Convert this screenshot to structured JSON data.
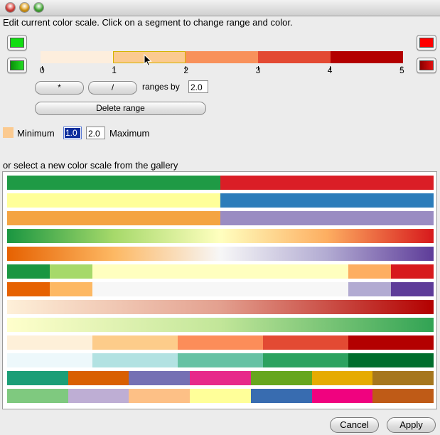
{
  "window": {
    "traffic_lights": {
      "close": "#e0443e",
      "minimize": "#e3a21a",
      "zoom": "#4bb13c"
    }
  },
  "editor": {
    "instruction": "Edit current color scale.  Click on a segment to change range and color.",
    "min_color_top": "#11dd11",
    "max_color_top": "#ff0000",
    "min_color_gradient": [
      "#0a8f0a",
      "#22dd22"
    ],
    "max_color_gradient": [
      "#8b0000",
      "#e01010"
    ],
    "scale_segments": [
      {
        "from": 0,
        "to": 1,
        "color": "#fdeedd"
      },
      {
        "from": 1,
        "to": 2,
        "color": "#fbca90",
        "selected": true
      },
      {
        "from": 2,
        "to": 3,
        "color": "#f8915b"
      },
      {
        "from": 3,
        "to": 4,
        "color": "#e34a33"
      },
      {
        "from": 4,
        "to": 5,
        "color": "#b30000"
      }
    ],
    "tick_labels": [
      "0",
      "1",
      "2",
      "3",
      "4",
      "5"
    ],
    "multiply_label": "*",
    "divide_label": "/",
    "ranges_by_label": "ranges by",
    "ranges_by_value": "2.0",
    "delete_range_label": "Delete range",
    "selected_color": "#fbca90",
    "minimum_label": "Minimum",
    "minimum_value": "1.0",
    "maximum_value": "2.0",
    "maximum_label": "Maximum"
  },
  "gallery": {
    "label": "or select a new color scale from the gallery",
    "scales": [
      {
        "type": "segments",
        "colors": [
          "#1f9a45",
          "#1f9a45",
          "#da1e26",
          "#da1e26"
        ]
      },
      {
        "type": "segments",
        "colors": [
          "#ffff99",
          "#ffff99",
          "#2b7cba",
          "#2b7cba"
        ]
      },
      {
        "type": "segments",
        "colors": [
          "#f4a442",
          "#f4a442",
          "#9a8cc2",
          "#9a8cc2"
        ]
      },
      {
        "type": "gradient",
        "colors": [
          "#1a9641",
          "#a6d96a",
          "#ffffbf",
          "#fdae61",
          "#d7191c"
        ]
      },
      {
        "type": "gradient",
        "colors": [
          "#e66101",
          "#fdb863",
          "#f7f7f7",
          "#b2abd2",
          "#5e3c99"
        ]
      },
      {
        "type": "weighted",
        "colors": [
          "#1a9641",
          "#a6d96a",
          "#ffffbf",
          "#fdae61",
          "#d7191c"
        ],
        "weights": [
          1,
          1,
          6,
          1,
          1
        ]
      },
      {
        "type": "weighted",
        "colors": [
          "#e66101",
          "#fdb863",
          "#f7f7f7",
          "#b2abd2",
          "#5e3c99"
        ],
        "weights": [
          1,
          1,
          6,
          1,
          1
        ]
      },
      {
        "type": "gradient",
        "colors": [
          "#fef0d9",
          "#e3a08f",
          "#b30000"
        ]
      },
      {
        "type": "gradient",
        "colors": [
          "#ffffcc",
          "#c2e699",
          "#31a354"
        ]
      },
      {
        "type": "segments",
        "colors": [
          "#fef0d9",
          "#fdcc8a",
          "#fc8d59",
          "#e34a33",
          "#b30000"
        ]
      },
      {
        "type": "segments",
        "colors": [
          "#edf8fb",
          "#b2e2e2",
          "#66c2a4",
          "#2ca25f",
          "#006d2c"
        ]
      },
      {
        "type": "segments",
        "colors": [
          "#1b9e77",
          "#d95f02",
          "#7570b3",
          "#e7298a",
          "#66a61e",
          "#e6ab02",
          "#a6761d"
        ]
      },
      {
        "type": "segments",
        "colors": [
          "#7fc97f",
          "#beaed4",
          "#fdc086",
          "#ffff99",
          "#386cb0",
          "#f0027f",
          "#bf5b17"
        ]
      }
    ]
  },
  "buttons": {
    "cancel": "Cancel",
    "apply": "Apply"
  }
}
